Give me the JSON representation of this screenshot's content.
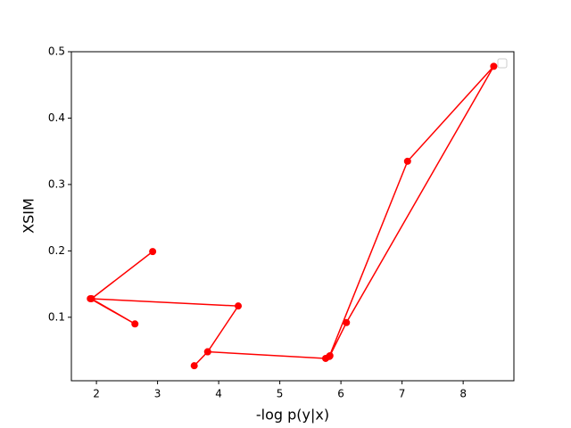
{
  "chart_data": {
    "type": "line",
    "xlabel": "-log p(y|x)",
    "ylabel": "XSIM",
    "series": [
      {
        "color": "#ff0000",
        "x": [
          2.92,
          1.92,
          2.63,
          1.9,
          4.32,
          3.82,
          3.6,
          3.82,
          5.75,
          5.82,
          6.09,
          8.5,
          7.09,
          5.81
        ],
        "values": [
          0.199,
          0.128,
          0.09,
          0.128,
          0.117,
          0.048,
          0.027,
          0.048,
          0.038,
          0.042,
          0.092,
          0.478,
          0.335,
          0.041
        ]
      }
    ],
    "xlim": [
      1.59,
      8.83
    ],
    "xticks": [
      2,
      3,
      4,
      5,
      6,
      7,
      8
    ],
    "ylim": [
      0.0044,
      0.5
    ],
    "yticks": [
      0.1,
      0.2,
      0.3,
      0.4,
      0.5
    ]
  }
}
